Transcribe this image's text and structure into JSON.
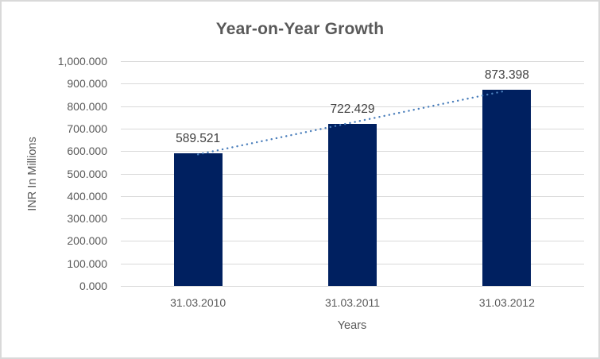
{
  "chart_data": {
    "type": "bar",
    "title": "Year-on-Year Growth",
    "xlabel": "Years",
    "ylabel": "INR In Millions",
    "categories": [
      "31.03.2010",
      "31.03.2011",
      "31.03.2012"
    ],
    "values": [
      589.521,
      722.429,
      873.398
    ],
    "data_labels": [
      "589.521",
      "722.429",
      "873.398"
    ],
    "yticks": [
      "1,000.000",
      "900.000",
      "800.000",
      "700.000",
      "600.000",
      "500.000",
      "400.000",
      "300.000",
      "200.000",
      "100.000",
      "0.000"
    ],
    "ylim": [
      0,
      1000
    ],
    "grid": true,
    "legend": "none",
    "trendline": {
      "style": "dotted",
      "color": "#4a7ebb"
    },
    "colors": {
      "bar": "#002060",
      "gridline": "#d9d9d9",
      "axis_text": "#595959",
      "data_label_text": "#404040",
      "title_text": "#595959",
      "frame_border": "#d9d9d9",
      "background": "#ffffff"
    }
  }
}
